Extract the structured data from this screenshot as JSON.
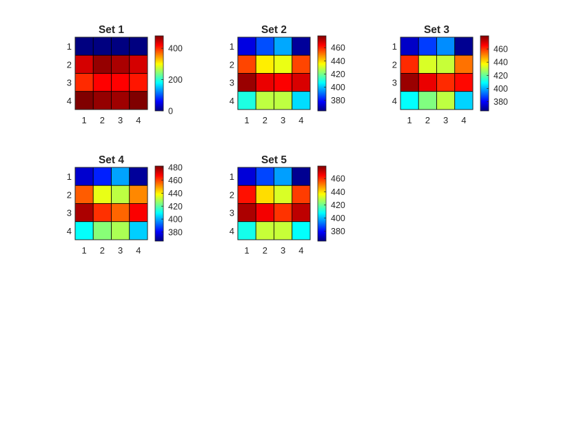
{
  "chart_data": [
    {
      "type": "heatmap",
      "title": "Set 1",
      "x_ticks": [
        "1",
        "2",
        "3",
        "4"
      ],
      "y_ticks": [
        "1",
        "2",
        "3",
        "4"
      ],
      "values": [
        [
          0,
          0,
          0,
          0
        ],
        [
          440,
          470,
          460,
          440
        ],
        [
          400,
          420,
          420,
          410
        ],
        [
          490,
          470,
          465,
          485
        ]
      ],
      "clim": [
        0,
        480
      ],
      "colorbar_ticks": [
        "0",
        "200",
        "400"
      ],
      "colorbar_tick_values": [
        0,
        200,
        400
      ],
      "colormap": "jet"
    },
    {
      "type": "heatmap",
      "title": "Set 2",
      "x_ticks": [
        "1",
        "2",
        "3",
        "4"
      ],
      "y_ticks": [
        "1",
        "2",
        "3",
        "4"
      ],
      "values": [
        [
          375,
          387,
          397,
          367
        ],
        [
          456,
          437,
          433,
          456
        ],
        [
          475,
          466,
          464,
          468
        ],
        [
          410,
          428,
          428,
          403
        ]
      ],
      "clim": [
        364,
        478
      ],
      "colorbar_ticks": [
        "380",
        "400",
        "420",
        "440",
        "460"
      ],
      "colorbar_tick_values": [
        380,
        400,
        420,
        440,
        460
      ],
      "colormap": "jet"
    },
    {
      "type": "heatmap",
      "title": "Set 3",
      "x_ticks": [
        "1",
        "2",
        "3",
        "4"
      ],
      "y_ticks": [
        "1",
        "2",
        "3",
        "4"
      ],
      "values": [
        [
          374,
          387,
          396,
          368
        ],
        [
          461,
          433,
          431,
          453
        ],
        [
          477,
          468,
          461,
          465
        ],
        [
          409,
          423,
          430,
          404
        ]
      ],
      "clim": [
        366,
        480
      ],
      "colorbar_ticks": [
        "380",
        "400",
        "420",
        "440",
        "460"
      ],
      "colorbar_tick_values": [
        380,
        400,
        420,
        440,
        460
      ],
      "colormap": "jet"
    },
    {
      "type": "heatmap",
      "title": "Set 4",
      "x_ticks": [
        "1",
        "2",
        "3",
        "4"
      ],
      "y_ticks": [
        "1",
        "2",
        "3",
        "4"
      ],
      "values": [
        [
          375,
          384,
          399,
          369
        ],
        [
          457,
          436,
          431,
          452
        ],
        [
          477,
          462,
          456,
          468
        ],
        [
          410,
          425,
          429,
          404
        ]
      ],
      "clim": [
        366,
        482
      ],
      "colorbar_ticks": [
        "380",
        "400",
        "420",
        "440",
        "460",
        "480"
      ],
      "colorbar_tick_values": [
        380,
        400,
        420,
        440,
        460,
        480
      ],
      "colormap": "jet"
    },
    {
      "type": "heatmap",
      "title": "Set 5",
      "x_ticks": [
        "1",
        "2",
        "3",
        "4"
      ],
      "y_ticks": [
        "1",
        "2",
        "3",
        "4"
      ],
      "values": [
        [
          375,
          387,
          397,
          367
        ],
        [
          463,
          440,
          432,
          458
        ],
        [
          474,
          466,
          459,
          472
        ],
        [
          410,
          430,
          430,
          408
        ]
      ],
      "clim": [
        365,
        479
      ],
      "colorbar_ticks": [
        "380",
        "400",
        "420",
        "440",
        "460"
      ],
      "colorbar_tick_values": [
        380,
        400,
        420,
        440,
        460
      ],
      "colormap": "jet"
    }
  ]
}
